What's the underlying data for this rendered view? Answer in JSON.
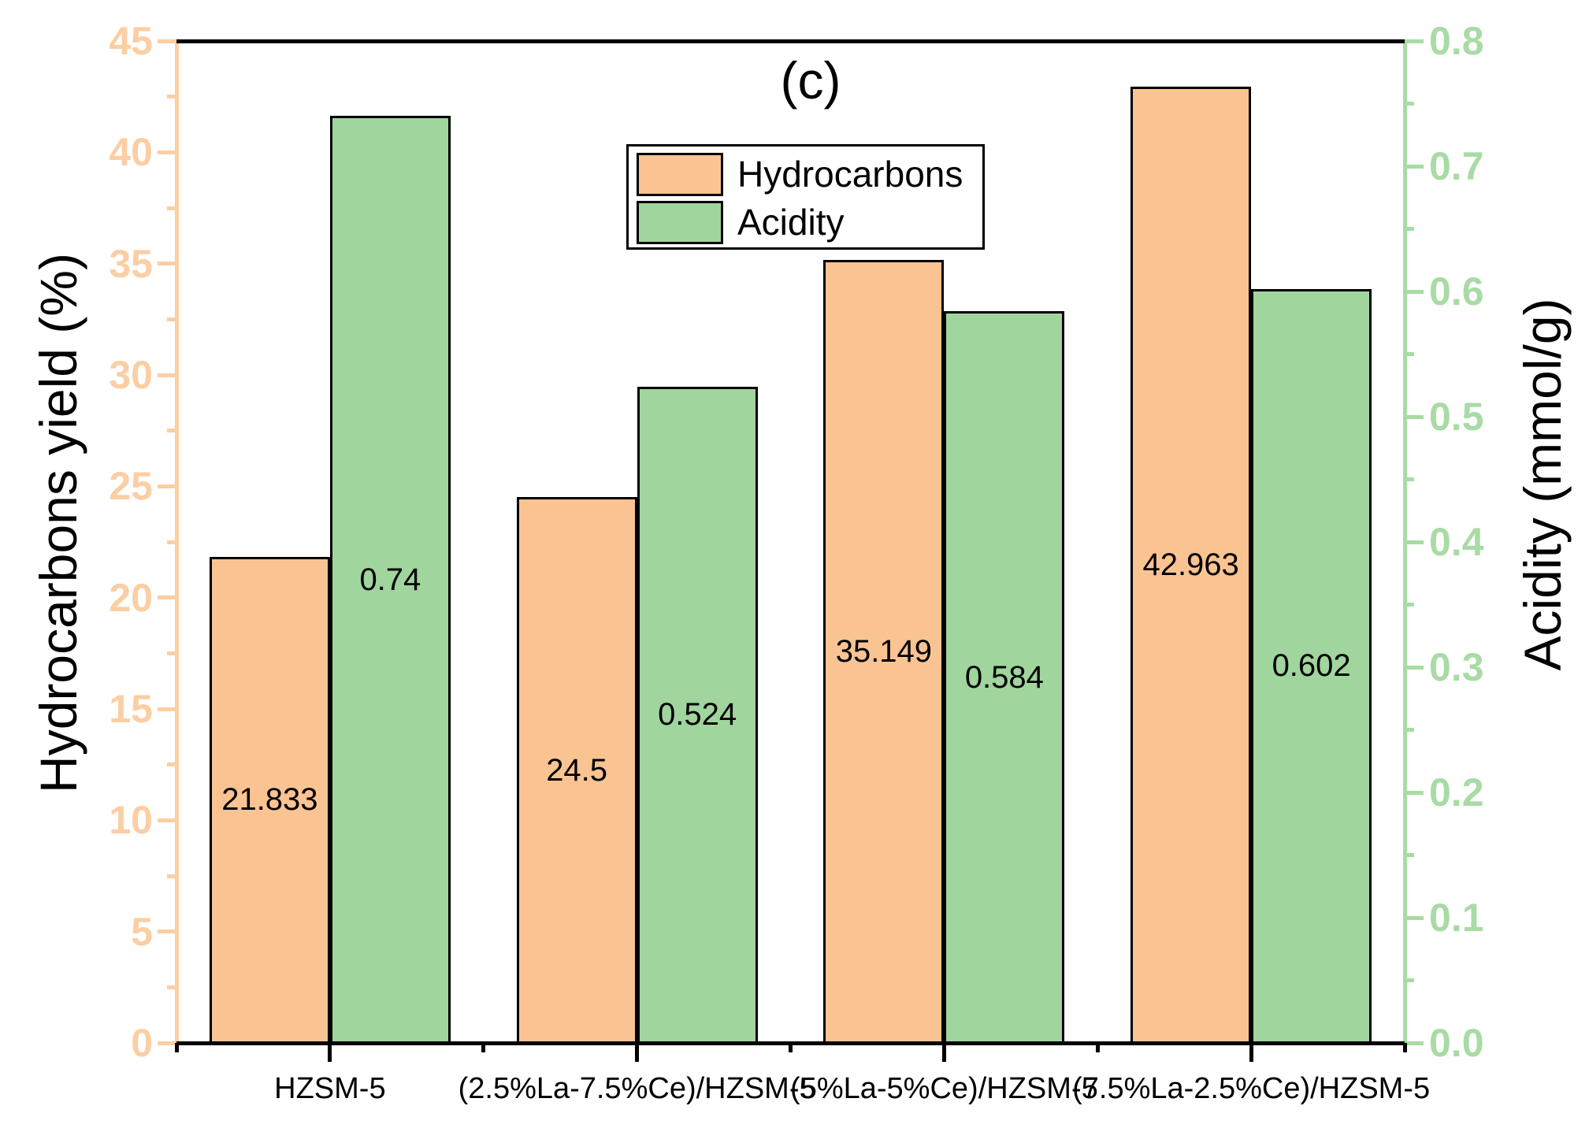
{
  "chart_data": {
    "type": "bar",
    "title": "(c)",
    "categories": [
      "HZSM-5",
      "(2.5%La-7.5%Ce)/HZSM-5",
      "(5%La-5%Ce)/HZSM-5",
      "(7.5%La-2.5%Ce)/HZSM-5"
    ],
    "series": [
      {
        "name": "Hydrocarbons",
        "axis": "left",
        "color": "#FAC392",
        "values": [
          21.833,
          24.5,
          35.149,
          42.963
        ],
        "value_labels": [
          "21.833",
          "24.5",
          "35.149",
          "42.963"
        ]
      },
      {
        "name": "Acidity",
        "axis": "right",
        "color": "#A0D59E",
        "values": [
          0.74,
          0.524,
          0.584,
          0.602
        ],
        "value_labels": [
          "0.74",
          "0.524",
          "0.584",
          "0.602"
        ]
      }
    ],
    "left_axis": {
      "label": "Hydrocarbons yield (%)",
      "min": 0,
      "max": 45,
      "major_step": 5,
      "minor_step": 2.5,
      "color": "#FBCEA3",
      "tick_labels": [
        "0",
        "5",
        "10",
        "15",
        "20",
        "25",
        "30",
        "35",
        "40",
        "45"
      ]
    },
    "right_axis": {
      "label": "Acidity (mmol/g)",
      "min": 0,
      "max": 0.8,
      "major_step": 0.1,
      "minor_step": 0.05,
      "color": "#A9DBA5",
      "tick_labels": [
        "0.0",
        "0.1",
        "0.2",
        "0.3",
        "0.4",
        "0.5",
        "0.6",
        "0.7",
        "0.8"
      ]
    },
    "x_axis": {
      "color": "#000000",
      "top_frame_color": "#000000"
    },
    "legend": {
      "position": "top-center",
      "entries": [
        "Hydrocarbons",
        "Acidity"
      ]
    },
    "grid": false,
    "bar_value_label_position": "center-of-bar"
  }
}
